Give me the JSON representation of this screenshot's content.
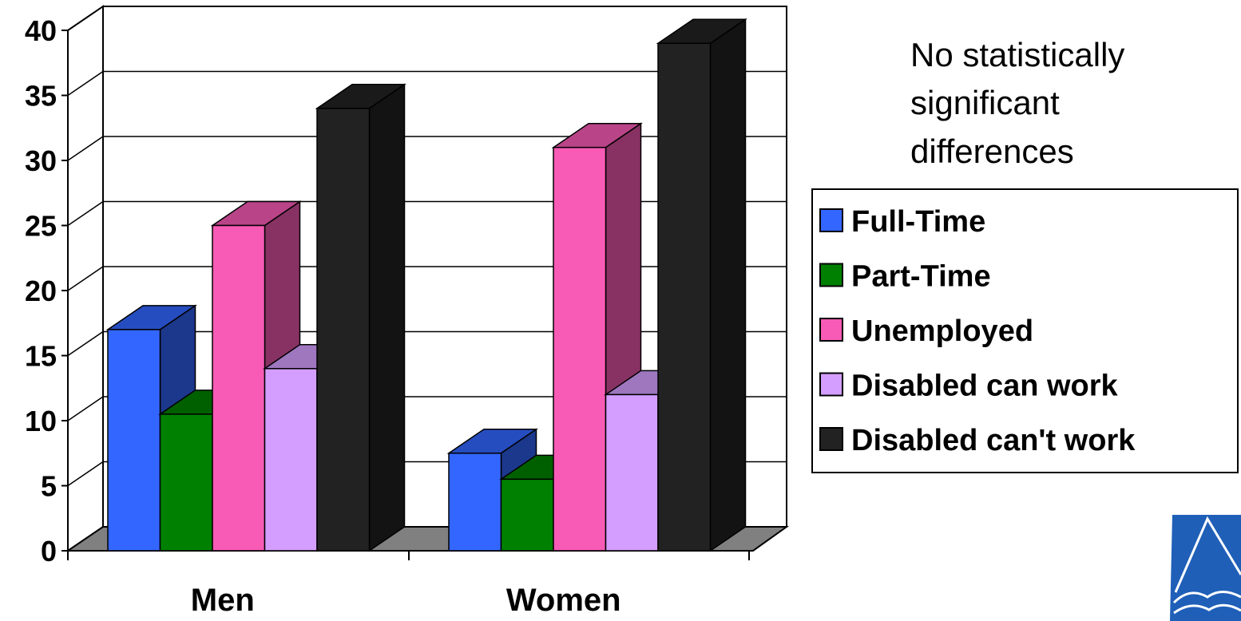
{
  "chart_data": {
    "type": "bar",
    "categories": [
      "Men",
      "Women"
    ],
    "series": [
      {
        "name": "Full-Time",
        "values": [
          17,
          7.5
        ],
        "color": "#3366ff"
      },
      {
        "name": "Part-Time",
        "values": [
          10.5,
          5.5
        ],
        "color": "#008000"
      },
      {
        "name": "Unemployed",
        "values": [
          25,
          31
        ],
        "color": "#f75bb5"
      },
      {
        "name": "Disabled can work",
        "values": [
          14,
          12
        ],
        "color": "#d39eff"
      },
      {
        "name": "Disabled can't work",
        "values": [
          34,
          39
        ],
        "color": "#222222"
      }
    ],
    "yticks": [
      "0",
      "5",
      "10",
      "15",
      "20",
      "25",
      "30",
      "35",
      "40"
    ],
    "ylim": [
      0,
      40
    ],
    "grid": true,
    "legend_position": "right",
    "three_d": true
  },
  "annotation": {
    "lines": [
      "No statistically",
      "significant",
      "differences"
    ]
  },
  "logo": {
    "icon": "triangle-logo-icon"
  }
}
